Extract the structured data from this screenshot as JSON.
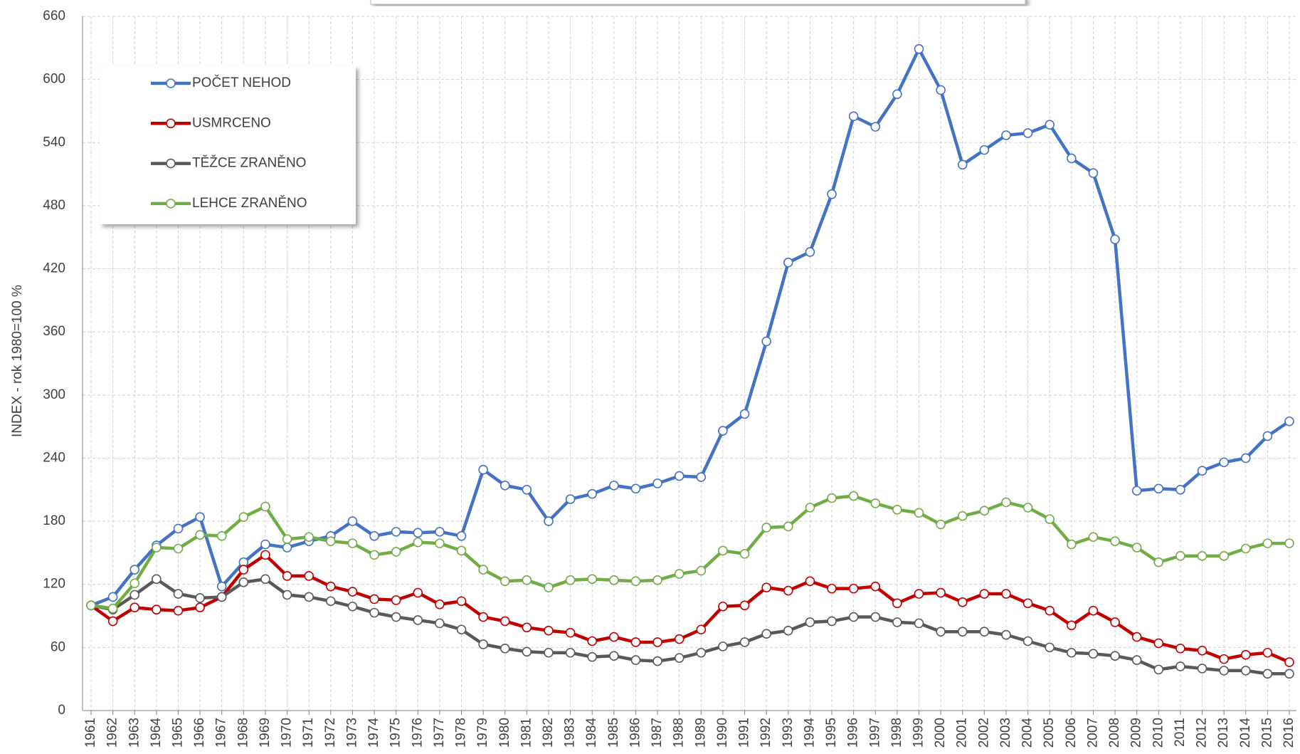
{
  "chart_data": {
    "type": "line",
    "ylabel": "INDEX - rok 1980=100 %",
    "categories": [
      "1961",
      "1962",
      "1963",
      "1964",
      "1965",
      "1966",
      "1967",
      "1968",
      "1969",
      "1970",
      "1971",
      "1972",
      "1973",
      "1974",
      "1975",
      "1976",
      "1977",
      "1978",
      "1979",
      "1980",
      "1981",
      "1982",
      "1983",
      "1984",
      "1985",
      "1986",
      "1987",
      "1988",
      "1989",
      "1990",
      "1991",
      "1992",
      "1993",
      "1994",
      "1995",
      "1996",
      "1997",
      "1998",
      "1999",
      "2000",
      "2001",
      "2002",
      "2003",
      "2004",
      "2005",
      "2006",
      "2007",
      "2008",
      "2009",
      "2010",
      "2011",
      "2012",
      "2013",
      "2014",
      "2015",
      "2016"
    ],
    "series": [
      {
        "name": "POČET NEHOD",
        "color": "#4472c4",
        "values": [
          100,
          108,
          134,
          157,
          173,
          184,
          118,
          141,
          158,
          155,
          161,
          166,
          180,
          166,
          170,
          169,
          170,
          166,
          229,
          214,
          210,
          180,
          201,
          206,
          214,
          211,
          216,
          223,
          222,
          266,
          282,
          351,
          426,
          436,
          491,
          565,
          555,
          586,
          629,
          590,
          519,
          533,
          547,
          549,
          557,
          525,
          511,
          448,
          209,
          211,
          210,
          228,
          236,
          240,
          261,
          275
        ]
      },
      {
        "name": "USMRCENO",
        "color": "#c00000",
        "values": [
          100,
          85,
          98,
          96,
          95,
          98,
          108,
          134,
          148,
          128,
          128,
          118,
          113,
          106,
          105,
          112,
          101,
          104,
          89,
          85,
          79,
          76,
          74,
          66,
          70,
          65,
          65,
          68,
          77,
          99,
          100,
          117,
          114,
          123,
          116,
          116,
          118,
          102,
          111,
          112,
          103,
          111,
          111,
          102,
          95,
          81,
          95,
          84,
          70,
          64,
          59,
          57,
          49,
          53,
          55,
          46
        ]
      },
      {
        "name": "TĚŽCE ZRANĚNO",
        "color": "#595959",
        "values": [
          100,
          96,
          110,
          125,
          111,
          107,
          108,
          122,
          125,
          110,
          108,
          104,
          99,
          93,
          89,
          86,
          83,
          77,
          63,
          59,
          56,
          55,
          55,
          51,
          52,
          48,
          47,
          50,
          55,
          61,
          65,
          73,
          76,
          84,
          85,
          89,
          89,
          84,
          83,
          75,
          75,
          75,
          72,
          66,
          60,
          55,
          54,
          52,
          48,
          39,
          42,
          40,
          38,
          38,
          35,
          35
        ]
      },
      {
        "name": "LEHCE ZRANĚNO",
        "color": "#70ad47",
        "values": [
          100,
          97,
          121,
          155,
          154,
          167,
          166,
          184,
          194,
          163,
          165,
          161,
          159,
          148,
          151,
          160,
          159,
          152,
          134,
          123,
          124,
          117,
          124,
          125,
          124,
          123,
          124,
          130,
          133,
          152,
          149,
          174,
          175,
          193,
          202,
          204,
          197,
          191,
          188,
          177,
          185,
          190,
          198,
          193,
          182,
          158,
          165,
          161,
          155,
          141,
          147,
          147,
          147,
          154,
          159,
          159
        ]
      }
    ],
    "ylim": [
      0,
      660
    ],
    "yticks": [
      0,
      60,
      120,
      180,
      240,
      300,
      360,
      420,
      480,
      540,
      600,
      660
    ],
    "grid": true,
    "legend": "upper-left"
  }
}
